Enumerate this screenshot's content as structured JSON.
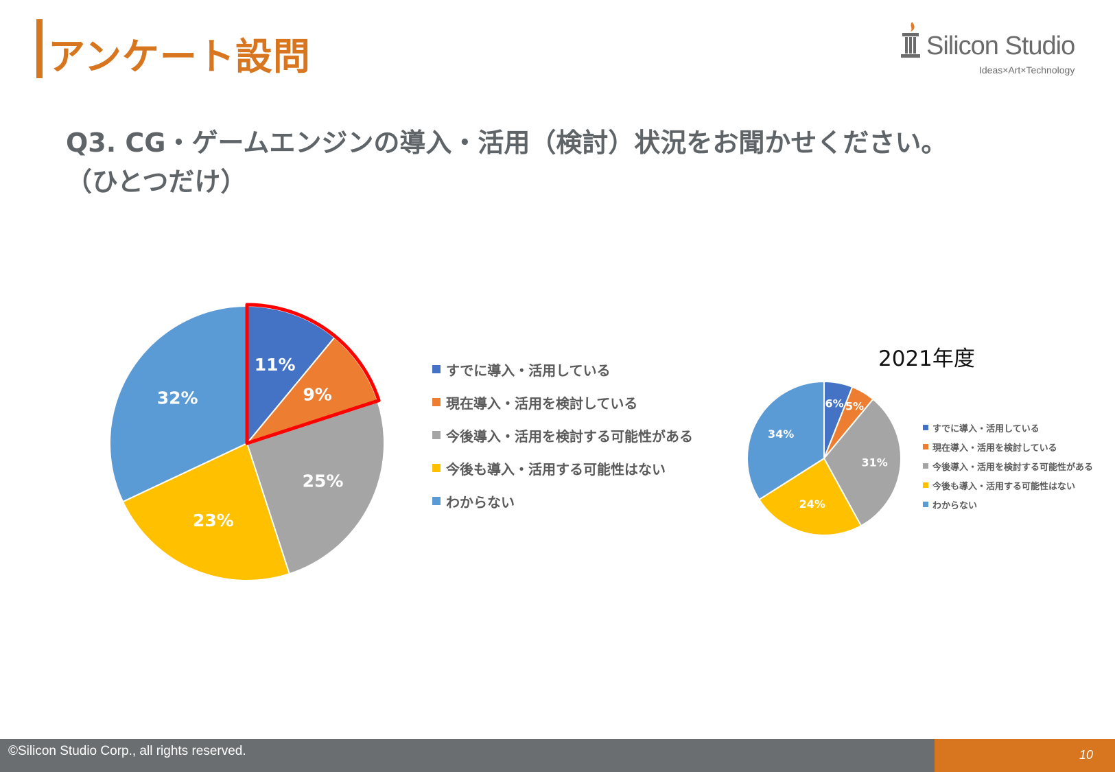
{
  "slide": {
    "title": "アンケート設問",
    "question_line1": "Q3. CG・ゲームエンジンの導入・活用（検討）状況をお聞かせください。",
    "question_line2": "（ひとつだけ）"
  },
  "logo": {
    "name": "Silicon Studio",
    "tagline": "Ideas×Art×Technology"
  },
  "colors": {
    "accent": "#d8751f",
    "highlight": "#ff0000",
    "series": [
      "#4472c4",
      "#ed7d31",
      "#a5a5a5",
      "#ffc000",
      "#5b9bd5"
    ]
  },
  "legend": [
    "すでに導入・活用している",
    "現在導入・活用を検討している",
    "今後導入・活用を検討する可能性がある",
    "今後も導入・活用する可能性はない",
    "わからない"
  ],
  "chart_data": [
    {
      "type": "pie",
      "title": "",
      "categories": [
        "すでに導入・活用している",
        "現在導入・活用を検討している",
        "今後導入・活用を検討する可能性がある",
        "今後も導入・活用する可能性はない",
        "わからない"
      ],
      "values": [
        11,
        9,
        25,
        23,
        32
      ],
      "labels": [
        "11%",
        "9%",
        "25%",
        "23%",
        "32%"
      ],
      "highlighted": [
        0,
        1
      ],
      "legend_position": "right"
    },
    {
      "type": "pie",
      "title": "2021年度",
      "categories": [
        "すでに導入・活用している",
        "現在導入・活用を検討している",
        "今後導入・活用を検討する可能性がある",
        "今後も導入・活用する可能性はない",
        "わからない"
      ],
      "values": [
        6,
        5,
        31,
        24,
        34
      ],
      "labels": [
        "6%",
        "5%",
        "31%",
        "24%",
        "34%"
      ],
      "legend_position": "right"
    }
  ],
  "footer": {
    "copyright": "©Silicon Studio Corp., all rights reserved.",
    "page_number": "10"
  }
}
